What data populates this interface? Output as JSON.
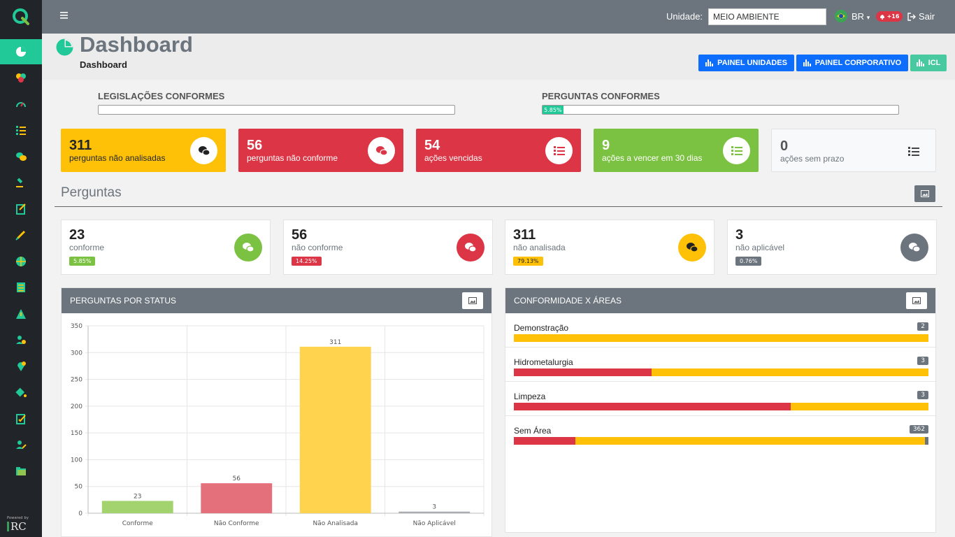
{
  "topbar": {
    "unit_label": "Unidade:",
    "unit_value": "MEIO AMBIENTE",
    "lang": "BR",
    "notifications": "+16",
    "logout": "Sair"
  },
  "header": {
    "title": "Dashboard",
    "breadcrumb": "Dashboard",
    "buttons": [
      "PAINEL UNIDADES",
      "PAINEL CORPORATIVO",
      "ICL"
    ]
  },
  "progress": {
    "legislacoes": {
      "label": "LEGISLAÇÕES CONFORMES",
      "percent": 0,
      "text": ""
    },
    "perguntas": {
      "label": "PERGUNTAS CONFORMES",
      "percent": 5.85,
      "text": "5.85%"
    }
  },
  "summary_cards": [
    {
      "num": "311",
      "label": "perguntas não analisadas",
      "color": "#ffc107"
    },
    {
      "num": "56",
      "label": "perguntas não conforme",
      "color": "#dc3545"
    },
    {
      "num": "54",
      "label": "ações vencidas",
      "color": "#dc3545"
    },
    {
      "num": "9",
      "label": "ações a vencer em 30 dias",
      "color": "#7cc242"
    },
    {
      "num": "0",
      "label": "ações sem prazo",
      "color": "#f8f9fa"
    }
  ],
  "section": {
    "title": "Perguntas"
  },
  "stats": [
    {
      "num": "23",
      "label": "conforme",
      "pct": "5.85%",
      "color": "#7cc242"
    },
    {
      "num": "56",
      "label": "não conforme",
      "pct": "14.25%",
      "color": "#dc3545"
    },
    {
      "num": "311",
      "label": "não analisada",
      "pct": "79.13%",
      "color": "#ffc107"
    },
    {
      "num": "3",
      "label": "não aplicável",
      "pct": "0.76%",
      "color": "#6c757d"
    }
  ],
  "panels": {
    "status_title": "PERGUNTAS POR STATUS",
    "areas_title": "CONFORMIDADE X ÁREAS"
  },
  "chart_data": {
    "type": "bar",
    "categories": [
      "Conforme",
      "Não Conforme",
      "Não Analisada",
      "Não Aplicável"
    ],
    "values": [
      23,
      56,
      311,
      3
    ],
    "colors": [
      "#a3d36f",
      "#e4707b",
      "#ffd34e",
      "#a9adb1"
    ],
    "ylim": [
      0,
      350
    ],
    "yticks": [
      0,
      50,
      100,
      150,
      200,
      250,
      300,
      350
    ],
    "grid": true
  },
  "areas": [
    {
      "name": "Demonstração",
      "count": "2",
      "segments": [
        {
          "color": "#ffc107",
          "frac": 1.0
        }
      ]
    },
    {
      "name": "Hidrometalurgia",
      "count": "3",
      "segments": [
        {
          "color": "#dc3545",
          "frac": 0.333
        },
        {
          "color": "#ffc107",
          "frac": 0.667
        }
      ]
    },
    {
      "name": "Limpeza",
      "count": "3",
      "segments": [
        {
          "color": "#dc3545",
          "frac": 0.667
        },
        {
          "color": "#ffc107",
          "frac": 0.333
        }
      ]
    },
    {
      "name": "Sem Área",
      "count": "362",
      "segments": [
        {
          "color": "#dc3545",
          "frac": 0.149
        },
        {
          "color": "#ffc107",
          "frac": 0.843
        },
        {
          "color": "#6c757d",
          "frac": 0.008
        }
      ]
    }
  ]
}
